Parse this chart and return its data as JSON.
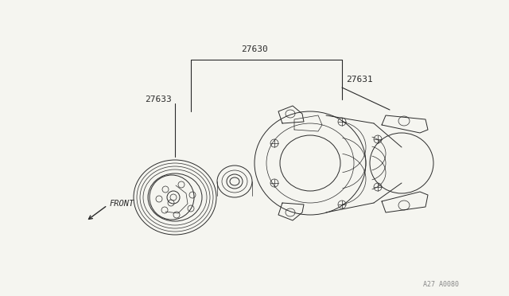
{
  "background_color": "#f5f5f0",
  "line_color": "#2a2a2a",
  "label_27630": "27630",
  "label_27631": "27631",
  "label_27633": "27633",
  "label_front": "FRONT",
  "watermark": "A27 A0080",
  "fig_width": 6.4,
  "fig_height": 3.72,
  "dpi": 100,
  "leader_color": "#2a2a2a"
}
